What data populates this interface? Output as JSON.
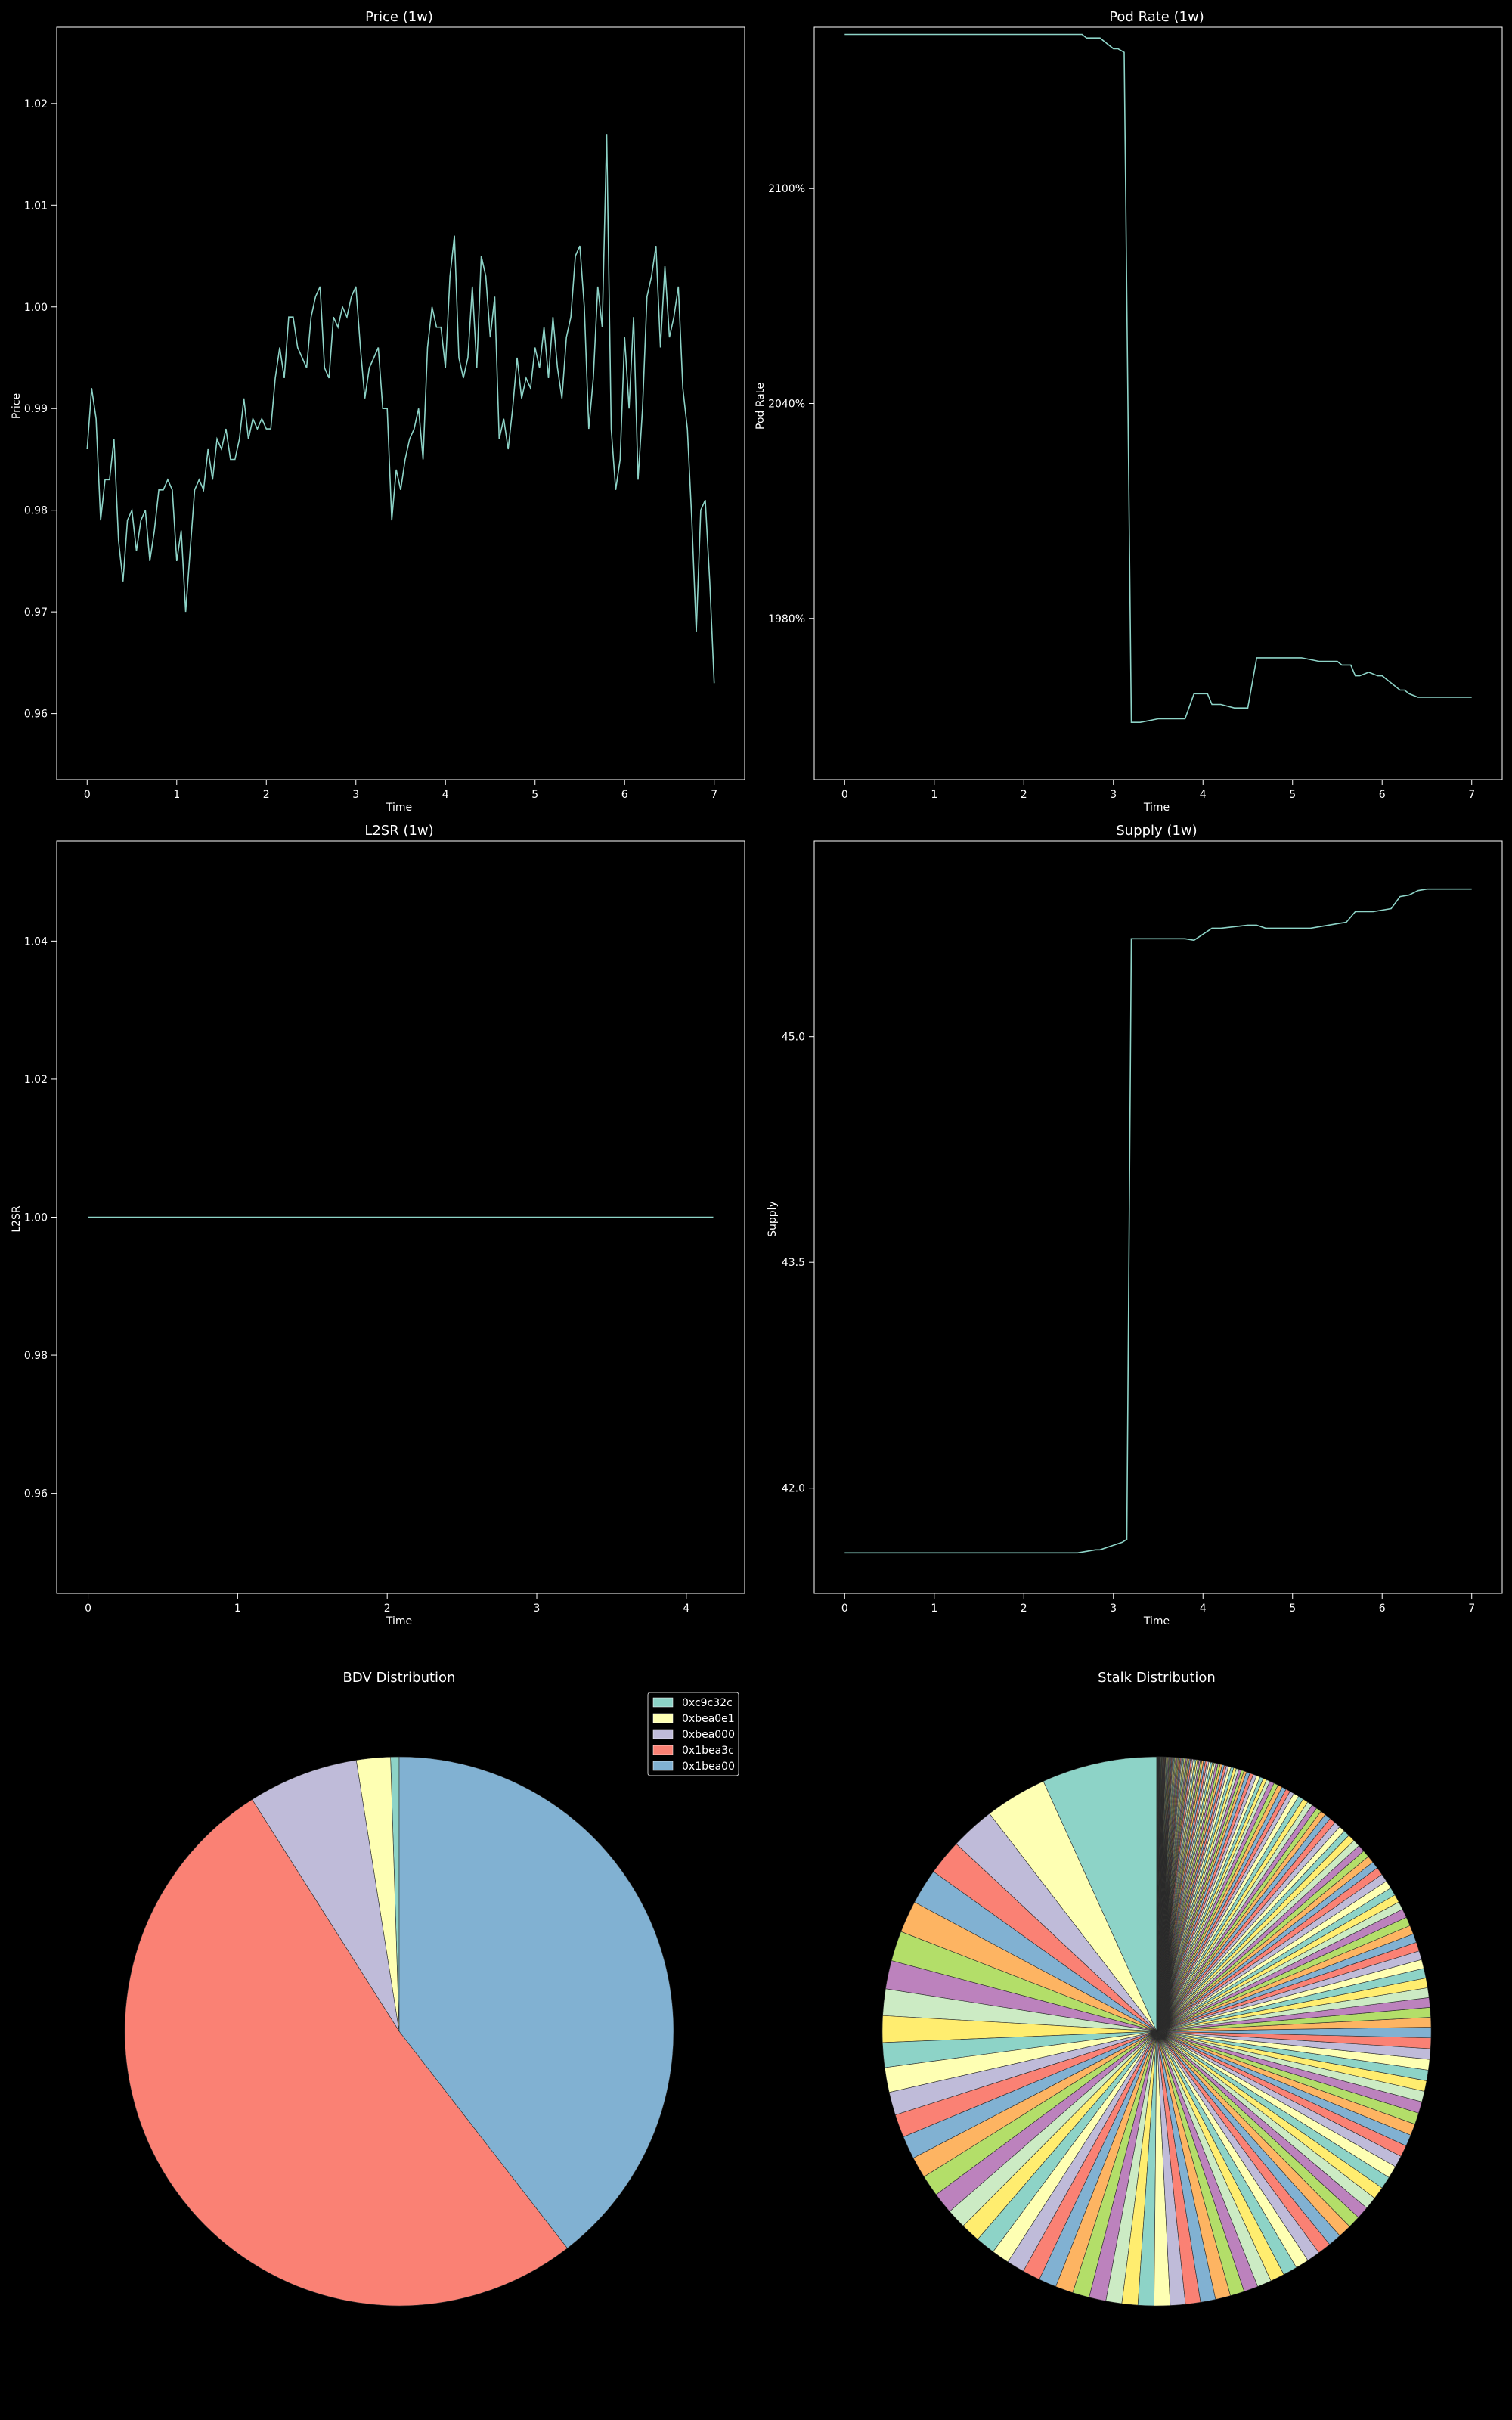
{
  "colors": {
    "background": "#000000",
    "axes": "#ffffff",
    "line": "#8dd3c7",
    "palette": [
      "#8dd3c7",
      "#feffb3",
      "#bfbbd9",
      "#fa8174",
      "#81b1d2",
      "#fdb462",
      "#b3de69",
      "#bc82bd",
      "#ccebc4",
      "#ffed6f"
    ]
  },
  "chart_data": [
    {
      "type": "line",
      "title": "Price (1w)",
      "xlabel": "Time",
      "ylabel": "Price",
      "xlim": [
        -0.34,
        7.34
      ],
      "ylim": [
        0.9535,
        1.0275
      ],
      "xticks": [
        "0",
        "1",
        "2",
        "3",
        "4",
        "5",
        "6",
        "7"
      ],
      "xtick_values": [
        0,
        1,
        2,
        3,
        4,
        5,
        6,
        7
      ],
      "yticks": [
        "0.96",
        "0.97",
        "0.98",
        "0.99",
        "1.00",
        "1.01",
        "1.02"
      ],
      "ytick_values": [
        0.96,
        0.97,
        0.98,
        0.99,
        1.0,
        1.01,
        1.02
      ],
      "x": [
        0.0,
        0.05,
        0.1,
        0.15,
        0.2,
        0.25,
        0.3,
        0.35,
        0.4,
        0.45,
        0.5,
        0.55,
        0.6,
        0.65,
        0.7,
        0.75,
        0.8,
        0.85,
        0.9,
        0.95,
        1.0,
        1.05,
        1.1,
        1.15,
        1.2,
        1.25,
        1.3,
        1.35,
        1.4,
        1.45,
        1.5,
        1.55,
        1.6,
        1.65,
        1.7,
        1.75,
        1.8,
        1.85,
        1.9,
        1.95,
        2.0,
        2.05,
        2.1,
        2.15,
        2.2,
        2.25,
        2.3,
        2.35,
        2.4,
        2.45,
        2.5,
        2.55,
        2.6,
        2.65,
        2.7,
        2.75,
        2.8,
        2.85,
        2.9,
        2.95,
        3.0,
        3.05,
        3.1,
        3.15,
        3.2,
        3.25,
        3.3,
        3.35,
        3.4,
        3.45,
        3.5,
        3.55,
        3.6,
        3.65,
        3.7,
        3.75,
        3.8,
        3.85,
        3.9,
        3.95,
        4.0,
        4.05,
        4.1,
        4.15,
        4.2,
        4.25,
        4.3,
        4.35,
        4.4,
        4.45,
        4.5,
        4.55,
        4.6,
        4.65,
        4.7,
        4.75,
        4.8,
        4.85,
        4.9,
        4.95,
        5.0,
        5.05,
        5.1,
        5.15,
        5.2,
        5.25,
        5.3,
        5.35,
        5.4,
        5.45,
        5.5,
        5.55,
        5.6,
        5.65,
        5.7,
        5.75,
        5.8,
        5.85,
        5.9,
        5.95,
        6.0,
        6.05,
        6.1,
        6.15,
        6.2,
        6.25,
        6.3,
        6.35,
        6.4,
        6.45,
        6.5,
        6.55,
        6.6,
        6.65,
        6.7,
        6.75,
        6.8,
        6.85,
        6.9,
        6.95,
        7.0
      ],
      "series": [
        {
          "values": [
            0.986,
            0.992,
            0.989,
            0.979,
            0.983,
            0.983,
            0.987,
            0.977,
            0.973,
            0.979,
            0.98,
            0.976,
            0.979,
            0.98,
            0.975,
            0.978,
            0.982,
            0.982,
            0.983,
            0.982,
            0.975,
            0.978,
            0.97,
            0.976,
            0.982,
            0.983,
            0.982,
            0.986,
            0.983,
            0.987,
            0.986,
            0.988,
            0.985,
            0.985,
            0.987,
            0.991,
            0.987,
            0.989,
            0.988,
            0.989,
            0.988,
            0.988,
            0.993,
            0.996,
            0.993,
            0.999,
            0.999,
            0.996,
            0.995,
            0.994,
            0.999,
            1.001,
            1.002,
            0.994,
            0.993,
            0.999,
            0.998,
            1.0,
            0.999,
            1.001,
            1.002,
            0.996,
            0.991,
            0.994,
            0.995,
            0.996,
            0.99,
            0.99,
            0.979,
            0.984,
            0.982,
            0.985,
            0.987,
            0.988,
            0.99,
            0.985,
            0.996,
            1.0,
            0.998,
            0.998,
            0.994,
            1.003,
            1.007,
            0.995,
            0.993,
            0.995,
            1.002,
            0.994,
            1.005,
            1.003,
            0.997,
            1.001,
            0.987,
            0.989,
            0.986,
            0.99,
            0.995,
            0.991,
            0.993,
            0.992,
            0.996,
            0.994,
            0.998,
            0.993,
            0.999,
            0.994,
            0.991,
            0.997,
            0.999,
            1.005,
            1.006,
            1.0,
            0.988,
            0.993,
            1.002,
            0.998,
            1.017,
            0.988,
            0.982,
            0.985,
            0.997,
            0.99,
            0.999,
            0.983,
            0.99,
            1.001,
            1.003,
            1.006,
            0.996,
            1.004,
            0.997,
            0.999,
            1.002,
            0.992,
            0.988,
            0.979,
            0.968,
            0.98,
            0.981,
            0.973,
            0.963
          ]
        }
      ]
    },
    {
      "type": "line",
      "title": "Pod Rate (1w)",
      "xlabel": "Time",
      "ylabel": "Pod Rate",
      "xlim": [
        -0.34,
        7.34
      ],
      "ylim": [
        1935,
        2145
      ],
      "xticks": [
        "0",
        "1",
        "2",
        "3",
        "4",
        "5",
        "6",
        "7"
      ],
      "xtick_values": [
        0,
        1,
        2,
        3,
        4,
        5,
        6,
        7
      ],
      "yticks": [
        "1980%",
        "2040%",
        "2100%"
      ],
      "ytick_values": [
        1980,
        2040,
        2100
      ],
      "x": [
        0.0,
        2.6,
        2.65,
        2.7,
        2.8,
        2.85,
        3.0,
        3.05,
        3.12,
        3.2,
        3.3,
        3.5,
        3.8,
        3.9,
        4.05,
        4.1,
        4.2,
        4.35,
        4.5,
        4.6,
        4.65,
        4.7,
        5.1,
        5.3,
        5.5,
        5.55,
        5.65,
        5.7,
        5.75,
        5.85,
        5.95,
        6.0,
        6.2,
        6.25,
        6.3,
        6.4,
        6.5,
        6.6,
        7.0
      ],
      "series": [
        {
          "values": [
            2143,
            2143,
            2143,
            2142,
            2142,
            2142,
            2139,
            2139,
            2138,
            1951,
            1951,
            1952,
            1952,
            1959,
            1959,
            1956,
            1956,
            1955,
            1955,
            1969,
            1969,
            1969,
            1969,
            1968,
            1968,
            1967,
            1967,
            1964,
            1964,
            1965,
            1964,
            1964,
            1960,
            1960,
            1959,
            1958,
            1958,
            1958,
            1958
          ]
        }
      ]
    },
    {
      "type": "line",
      "title": "L2SR (1w)",
      "xlabel": "Time",
      "ylabel": "L2SR",
      "xlim": [
        -0.21,
        4.39
      ],
      "ylim": [
        0.9455,
        1.0545
      ],
      "xticks": [
        "0",
        "1",
        "2",
        "3",
        "4"
      ],
      "xtick_values": [
        0,
        1,
        2,
        3,
        4
      ],
      "yticks": [
        "0.96",
        "0.98",
        "1.00",
        "1.02",
        "1.04"
      ],
      "ytick_values": [
        0.96,
        0.98,
        1.0,
        1.02,
        1.04
      ],
      "x": [
        0.0,
        4.18
      ],
      "series": [
        {
          "values": [
            1.0,
            1.0
          ]
        }
      ]
    },
    {
      "type": "line",
      "title": "Supply (1w)",
      "xlabel": "Time",
      "ylabel": "Supply",
      "xlim": [
        -0.34,
        7.34
      ],
      "ylim": [
        41.3,
        46.3
      ],
      "xticks": [
        "0",
        "1",
        "2",
        "3",
        "4",
        "5",
        "6",
        "7"
      ],
      "xtick_values": [
        0,
        1,
        2,
        3,
        4,
        5,
        6,
        7
      ],
      "yticks": [
        "42.0",
        "43.5",
        "45.0"
      ],
      "ytick_values": [
        42.0,
        43.5,
        45.0
      ],
      "x": [
        0.0,
        2.6,
        2.7,
        2.8,
        2.85,
        3.0,
        3.1,
        3.15,
        3.2,
        3.5,
        3.8,
        3.9,
        4.1,
        4.2,
        4.5,
        4.6,
        4.7,
        5.0,
        5.2,
        5.3,
        5.5,
        5.6,
        5.7,
        5.9,
        6.0,
        6.1,
        6.2,
        6.3,
        6.4,
        6.5,
        7.0
      ],
      "series": [
        {
          "values": [
            41.57,
            41.57,
            41.58,
            41.59,
            41.59,
            41.62,
            41.64,
            41.66,
            45.65,
            45.65,
            45.65,
            45.64,
            45.72,
            45.72,
            45.74,
            45.74,
            45.72,
            45.72,
            45.72,
            45.73,
            45.75,
            45.76,
            45.83,
            45.83,
            45.84,
            45.85,
            45.93,
            45.94,
            45.97,
            45.98,
            45.98
          ]
        }
      ]
    },
    {
      "type": "pie",
      "title": "BDV Distribution",
      "legend_position": "upper right",
      "labels": [
        "0xc9c32c",
        "0xbea0e1",
        "0xbea000",
        "0x1bea3c",
        "0x1bea00"
      ],
      "values": [
        0.5,
        2.0,
        6.5,
        51.5,
        39.5
      ]
    },
    {
      "type": "pie",
      "title": "Stalk Distribution",
      "values": [
        6.5,
        3.5,
        2.5,
        2.0,
        2.0,
        1.8,
        1.7,
        1.6,
        1.5,
        1.5,
        1.4,
        1.4,
        1.3,
        1.3,
        1.3,
        1.2,
        1.2,
        1.2,
        1.1,
        1.1,
        1.1,
        1.0,
        1.0,
        1.0,
        1.0,
        1.0,
        0.95,
        0.95,
        0.9,
        0.9,
        0.9,
        0.9,
        0.85,
        0.85,
        0.85,
        0.85,
        0.8,
        0.8,
        0.8,
        0.8,
        0.8,
        0.75,
        0.75,
        0.75,
        0.75,
        0.75,
        0.7,
        0.7,
        0.7,
        0.7,
        0.7,
        0.7,
        0.65,
        0.65,
        0.65,
        0.65,
        0.65,
        0.65,
        0.6,
        0.6,
        0.6,
        0.6,
        0.6,
        0.6,
        0.6,
        0.55,
        0.55,
        0.55,
        0.55,
        0.55,
        0.55,
        0.5,
        0.5,
        0.5,
        0.5,
        0.5,
        0.5,
        0.5,
        0.45,
        0.45,
        0.45,
        0.45,
        0.45,
        0.45,
        0.4,
        0.4,
        0.4,
        0.4,
        0.4,
        0.4,
        0.35,
        0.35,
        0.35,
        0.35,
        0.35,
        0.3,
        0.3,
        0.3,
        0.3,
        0.3,
        0.3,
        0.3,
        0.25,
        0.25,
        0.25,
        0.25,
        0.25,
        0.25,
        0.2,
        0.2,
        0.2,
        0.2,
        0.2,
        0.2,
        0.2,
        0.15,
        0.15,
        0.15,
        0.15,
        0.15,
        0.15,
        0.15,
        0.12,
        0.12,
        0.12,
        0.12,
        0.12,
        0.12,
        0.1,
        0.1,
        0.1,
        0.1,
        0.1,
        0.1,
        0.1,
        0.1,
        0.08,
        0.08,
        0.08,
        0.08,
        0.08,
        0.08,
        0.08,
        0.08,
        0.06,
        0.06,
        0.06,
        0.06,
        0.06,
        0.06,
        0.06,
        0.06,
        0.05,
        0.05,
        0.05,
        0.05,
        0.05,
        0.05,
        0.05,
        0.05,
        0.05,
        0.05,
        0.04,
        0.04,
        0.04,
        0.04,
        0.04,
        0.04,
        0.04,
        0.04,
        0.04,
        0.04,
        0.03,
        0.03,
        0.03,
        0.03,
        0.03,
        0.03,
        0.03,
        0.03,
        0.03,
        0.03,
        0.02,
        0.02,
        0.02,
        0.02,
        0.02,
        0.02,
        0.02,
        0.02,
        0.02,
        0.02
      ]
    }
  ]
}
